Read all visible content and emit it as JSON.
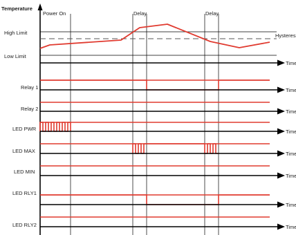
{
  "header": {
    "y_axis_title": "Temperature",
    "events": {
      "power_on": "Power On",
      "delay_1": "Delay",
      "delay_2": "Delay"
    }
  },
  "temperature_panel": {
    "high_limit": "High Limit",
    "low_limit": "Low Limit",
    "hysteresis": "Hysteresis",
    "time": "Time"
  },
  "channels": [
    {
      "label": "Relay 1",
      "time": "Time"
    },
    {
      "label": "Relay 2",
      "time": "Time"
    },
    {
      "label": "LED PWR",
      "time": "Time"
    },
    {
      "label": "LED MAX",
      "time": "Time"
    },
    {
      "label": "LED MIN",
      "time": "Time"
    },
    {
      "label": "LED RLY1",
      "time": "Time"
    },
    {
      "label": "LED RLY2",
      "time": "Time"
    }
  ],
  "colors": {
    "signal": "#e03a2f",
    "axis": "#000000",
    "threshold": "#555555"
  }
}
